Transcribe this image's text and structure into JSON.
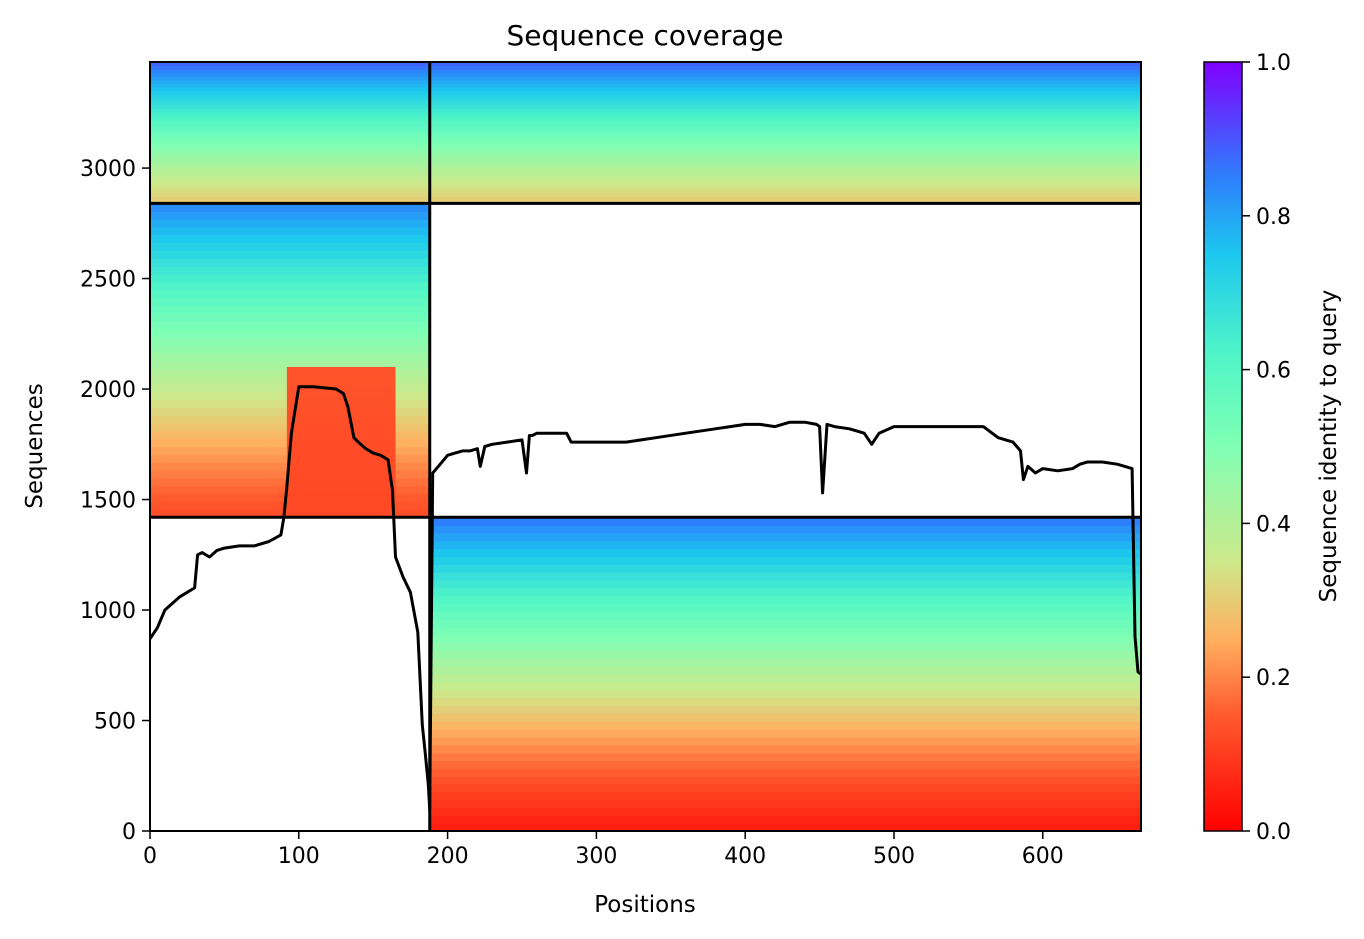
{
  "chart_data": {
    "type": "heatmap",
    "title": "Sequence coverage",
    "xlabel": "Positions",
    "ylabel": "Sequences",
    "xlim": [
      0,
      666
    ],
    "ylim": [
      0,
      3480
    ],
    "x_ticks": [
      0,
      100,
      200,
      300,
      400,
      500,
      600
    ],
    "y_ticks": [
      0,
      500,
      1000,
      1500,
      2000,
      2500,
      3000
    ],
    "colorbar": {
      "label": "Sequence identity to query",
      "colormap": "rainbow (red → orange → yellow-green → green → cyan → blue → violet)",
      "range": [
        0,
        1
      ],
      "ticks": [
        "0.0",
        "0.2",
        "0.4",
        "0.6",
        "0.8",
        "1.0"
      ]
    },
    "blocks": [
      {
        "name": "block-lower-right",
        "x_range": [
          188,
          666
        ],
        "seq_range": [
          0,
          1420
        ],
        "identity_bottom": 0.05,
        "identity_top": 0.85
      },
      {
        "name": "block-middle-left",
        "x_range": [
          0,
          188
        ],
        "seq_range": [
          1420,
          2840
        ],
        "identity_bottom": 0.13,
        "identity_top": 0.83
      },
      {
        "name": "block-middle-left-core",
        "x_range": [
          92,
          165
        ],
        "seq_range": [
          1420,
          2100
        ],
        "identity_bottom": 0.12,
        "identity_top": 0.14
      },
      {
        "name": "block-top",
        "x_range": [
          0,
          666
        ],
        "seq_range": [
          2840,
          3480
        ],
        "identity_bottom": 0.3,
        "identity_top": 0.88
      }
    ],
    "domain_boundaries": {
      "x": [
        188
      ],
      "y": [
        1420,
        2840
      ]
    },
    "series": [
      {
        "type": "line",
        "color": "#000000",
        "x": [
          0,
          5,
          10,
          20,
          30,
          32,
          35,
          40,
          45,
          50,
          60,
          70,
          80,
          88,
          90,
          92,
          95,
          100,
          110,
          125,
          130,
          133,
          137,
          140,
          145,
          150,
          155,
          160,
          163,
          165,
          170,
          175,
          180,
          183,
          185,
          186,
          187,
          188,
          190,
          195,
          200,
          205,
          210,
          215,
          220,
          222,
          225,
          230,
          240,
          250,
          253,
          255,
          257,
          260,
          270,
          280,
          283,
          300,
          320,
          340,
          360,
          380,
          390,
          400,
          410,
          420,
          430,
          440,
          448,
          450,
          452,
          455,
          460,
          470,
          480,
          485,
          490,
          500,
          520,
          540,
          560,
          570,
          580,
          585,
          587,
          590,
          595,
          600,
          610,
          620,
          625,
          630,
          640,
          650,
          660,
          662,
          664,
          666
        ],
        "y": [
          870,
          920,
          1000,
          1060,
          1100,
          1250,
          1260,
          1240,
          1270,
          1280,
          1290,
          1290,
          1310,
          1340,
          1420,
          1560,
          1800,
          2010,
          2010,
          2000,
          1980,
          1920,
          1780,
          1760,
          1730,
          1710,
          1700,
          1680,
          1540,
          1240,
          1150,
          1080,
          900,
          480,
          350,
          280,
          210,
          100,
          1620,
          1660,
          1700,
          1710,
          1720,
          1720,
          1730,
          1650,
          1740,
          1750,
          1760,
          1770,
          1620,
          1790,
          1790,
          1800,
          1800,
          1800,
          1760,
          1760,
          1760,
          1780,
          1800,
          1820,
          1830,
          1840,
          1840,
          1830,
          1850,
          1850,
          1840,
          1830,
          1530,
          1840,
          1830,
          1820,
          1800,
          1750,
          1800,
          1830,
          1830,
          1830,
          1830,
          1780,
          1760,
          1720,
          1590,
          1650,
          1620,
          1640,
          1630,
          1640,
          1660,
          1670,
          1670,
          1660,
          1640,
          880,
          720,
          710
        ]
      }
    ]
  }
}
